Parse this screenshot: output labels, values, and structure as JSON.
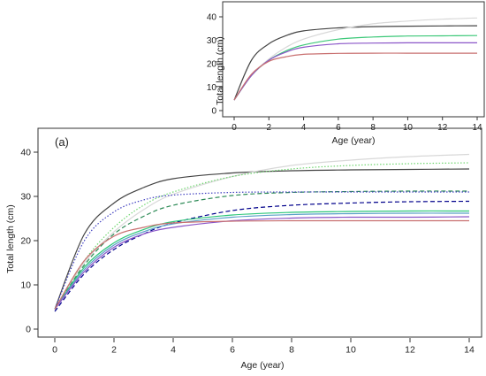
{
  "chart_data": [
    {
      "type": "line",
      "panel_label": "(a)",
      "xlabel": "Age (year)",
      "ylabel": "Total length (cm)",
      "xlim": [
        0,
        14
      ],
      "ylim": [
        0,
        40
      ],
      "xticks": [
        0,
        2,
        4,
        6,
        8,
        10,
        12,
        14
      ],
      "yticks": [
        0,
        10,
        20,
        30,
        40
      ],
      "grid": false,
      "series": [
        {
          "color": "#444444",
          "style": "solid",
          "x": [
            0,
            1,
            2,
            3,
            4,
            6,
            8,
            10,
            12,
            14
          ],
          "values": [
            4.5,
            21.5,
            28.5,
            32.0,
            34.0,
            35.3,
            35.8,
            36.0,
            36.1,
            36.2
          ]
        },
        {
          "color": "#d8d8d8",
          "style": "solid",
          "x": [
            0,
            1,
            2,
            3,
            4,
            6,
            8,
            10,
            12,
            14
          ],
          "values": [
            4.5,
            15.0,
            22.0,
            27.0,
            30.5,
            34.5,
            37.0,
            38.2,
            39.0,
            39.5
          ]
        },
        {
          "color": "#6fd66f",
          "style": "dotted",
          "x": [
            0,
            1,
            2,
            3,
            4,
            6,
            8,
            10,
            12,
            14
          ],
          "values": [
            4.5,
            15.5,
            23.0,
            28.0,
            31.0,
            34.5,
            36.2,
            37.0,
            37.4,
            37.6
          ]
        },
        {
          "color": "#2e8b57",
          "style": "dashed",
          "x": [
            0,
            1,
            2,
            3,
            4,
            6,
            8,
            10,
            12,
            14
          ],
          "values": [
            4.5,
            14.5,
            21.5,
            25.5,
            28.0,
            30.2,
            30.9,
            31.1,
            31.2,
            31.2
          ]
        },
        {
          "color": "#4040c0",
          "style": "dotted",
          "x": [
            0,
            1,
            2,
            3,
            4,
            6,
            8,
            10,
            12,
            14
          ],
          "values": [
            4.5,
            20.0,
            26.5,
            29.2,
            30.3,
            30.9,
            31.0,
            31.0,
            31.0,
            31.0
          ]
        },
        {
          "color": "#00008b",
          "style": "dashed",
          "x": [
            0,
            1,
            2,
            3,
            4,
            6,
            8,
            10,
            12,
            14
          ],
          "values": [
            4.0,
            12.5,
            18.0,
            21.5,
            24.0,
            26.8,
            28.0,
            28.5,
            28.8,
            28.9
          ]
        },
        {
          "color": "#2ec77a",
          "style": "solid",
          "x": [
            0,
            1,
            2,
            3,
            4,
            6,
            8,
            10,
            12,
            14
          ],
          "values": [
            4.5,
            14.0,
            19.5,
            22.5,
            24.3,
            25.8,
            26.4,
            26.6,
            26.7,
            26.7
          ]
        },
        {
          "color": "#5aa0c8",
          "style": "solid",
          "x": [
            0,
            1,
            2,
            3,
            4,
            6,
            8,
            10,
            12,
            14
          ],
          "values": [
            4.5,
            13.5,
            19.0,
            22.0,
            23.8,
            25.3,
            25.9,
            26.1,
            26.2,
            26.2
          ]
        },
        {
          "color": "#8a55c8",
          "style": "solid",
          "x": [
            0,
            1,
            2,
            3,
            4,
            6,
            8,
            10,
            12,
            14
          ],
          "values": [
            4.5,
            13.0,
            18.5,
            21.5,
            23.0,
            24.5,
            25.1,
            25.3,
            25.3,
            25.4
          ]
        },
        {
          "color": "#c97070",
          "style": "solid",
          "x": [
            0,
            1,
            2,
            3,
            4,
            6,
            8,
            10,
            12,
            14
          ],
          "values": [
            4.5,
            15.5,
            21.0,
            23.0,
            24.0,
            24.4,
            24.5,
            24.5,
            24.5,
            24.5
          ]
        }
      ]
    },
    {
      "type": "line",
      "panel_label": "",
      "xlabel": "Age (year)",
      "ylabel": "Total length (cm)",
      "xlim": [
        0,
        14
      ],
      "ylim": [
        0,
        40
      ],
      "xticks": [
        0,
        2,
        4,
        6,
        8,
        10,
        12,
        14
      ],
      "yticks": [
        0,
        10,
        20,
        30,
        40
      ],
      "grid": false,
      "series": [
        {
          "color": "#444444",
          "style": "solid",
          "x": [
            0,
            1,
            2,
            3,
            4,
            6,
            8,
            10,
            12,
            14
          ],
          "values": [
            4.5,
            21.5,
            28.5,
            32.0,
            34.0,
            35.3,
            35.8,
            36.0,
            36.1,
            36.2
          ]
        },
        {
          "color": "#d8d8d8",
          "style": "solid",
          "x": [
            0,
            1,
            2,
            3,
            4,
            6,
            8,
            10,
            12,
            14
          ],
          "values": [
            4.5,
            15.0,
            22.0,
            27.0,
            30.5,
            34.5,
            37.0,
            38.2,
            39.0,
            39.5
          ]
        },
        {
          "color": "#3cc878",
          "style": "solid",
          "x": [
            0,
            1,
            2,
            3,
            4,
            6,
            8,
            10,
            12,
            14
          ],
          "values": [
            4.5,
            15.0,
            21.5,
            25.5,
            28.0,
            30.5,
            31.4,
            31.8,
            31.9,
            32.0
          ]
        },
        {
          "color": "#8a55c8",
          "style": "solid",
          "x": [
            0,
            1,
            2,
            3,
            4,
            6,
            8,
            10,
            12,
            14
          ],
          "values": [
            4.5,
            15.0,
            21.5,
            25.0,
            27.0,
            28.5,
            28.8,
            28.9,
            28.9,
            28.9
          ]
        },
        {
          "color": "#c97070",
          "style": "solid",
          "x": [
            0,
            1,
            2,
            3,
            4,
            6,
            8,
            10,
            12,
            14
          ],
          "values": [
            4.5,
            15.5,
            21.0,
            23.0,
            24.0,
            24.4,
            24.5,
            24.5,
            24.5,
            24.5
          ]
        }
      ]
    }
  ]
}
